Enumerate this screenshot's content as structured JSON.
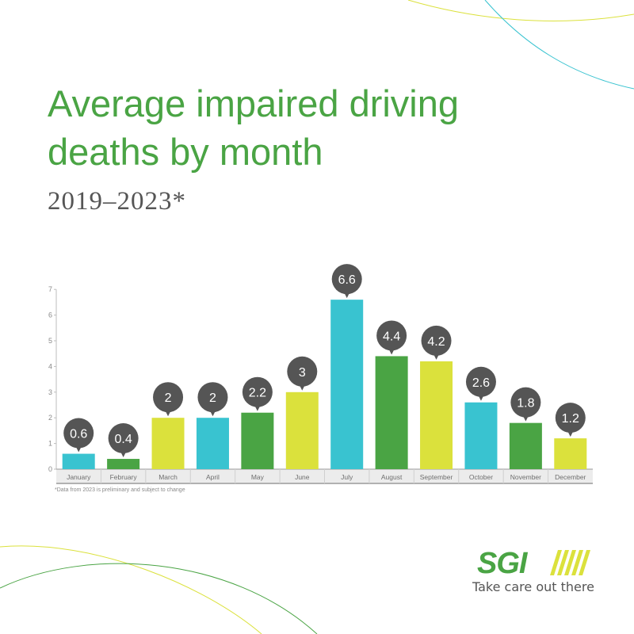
{
  "header": {
    "title": "Average impaired driving deaths by month",
    "subtitle": "2019–2023*"
  },
  "footnote": "*Data from 2023 is preliminary and subject to change",
  "brand": {
    "logo_text": "SGI",
    "tagline": "Take care out there",
    "colors": {
      "green": "#4aa444",
      "teal": "#39c3d0",
      "lime": "#dbe13c",
      "dark": "#555555",
      "label_bubble": "#555555"
    }
  },
  "chart_data": {
    "type": "bar",
    "categories": [
      "January",
      "February",
      "March",
      "April",
      "May",
      "June",
      "July",
      "August",
      "September",
      "October",
      "November",
      "December"
    ],
    "values": [
      0.6,
      0.4,
      2,
      2,
      2.2,
      3,
      6.6,
      4.4,
      4.2,
      2.6,
      1.8,
      1.2
    ],
    "data_labels": [
      "0.6",
      "0.4",
      "2",
      "2",
      "2.2",
      "3",
      "6.6",
      "4.4",
      "4.2",
      "2.6",
      "1.8",
      "1.2"
    ],
    "bar_colors": [
      "#39c3d0",
      "#4aa444",
      "#dbe13c",
      "#39c3d0",
      "#4aa444",
      "#dbe13c",
      "#39c3d0",
      "#4aa444",
      "#dbe13c",
      "#39c3d0",
      "#4aa444",
      "#dbe13c"
    ],
    "yticks": [
      "0",
      "1",
      "2",
      "3",
      "4",
      "5",
      "6",
      "7"
    ],
    "ylim": [
      0,
      7
    ],
    "title": "",
    "xlabel": "",
    "ylabel": "",
    "grid": false,
    "legend": "none"
  }
}
